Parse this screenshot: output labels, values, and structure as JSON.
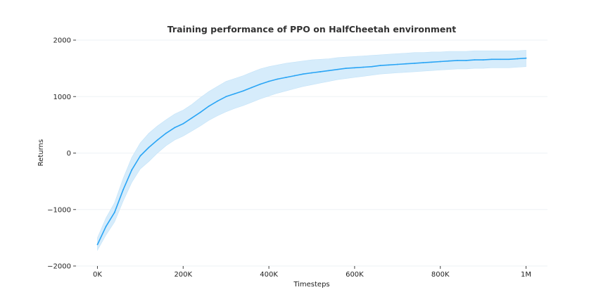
{
  "chart_data": {
    "type": "line",
    "title": "Training performance of PPO on HalfCheetah environment",
    "xlabel": "Timesteps",
    "ylabel": "Returns",
    "xlim": [
      -50000,
      1050000
    ],
    "ylim": [
      -2000,
      2000
    ],
    "xticks": [
      {
        "value": 0,
        "label": "0K"
      },
      {
        "value": 200000,
        "label": "200K"
      },
      {
        "value": 400000,
        "label": "400K"
      },
      {
        "value": 600000,
        "label": "600K"
      },
      {
        "value": 800000,
        "label": "800K"
      },
      {
        "value": 1000000,
        "label": "1M"
      }
    ],
    "yticks": [
      {
        "value": 2000,
        "label": "2000"
      },
      {
        "value": 1000,
        "label": "1000"
      },
      {
        "value": 0,
        "label": "0"
      },
      {
        "value": -1000,
        "label": "−1000"
      },
      {
        "value": -2000,
        "label": "−2000"
      }
    ],
    "grid": "horizontal",
    "series": [
      {
        "color": "#2aa5f5",
        "band_color": "#d6ecfb",
        "x": [
          0,
          20000,
          40000,
          60000,
          80000,
          100000,
          120000,
          140000,
          160000,
          180000,
          200000,
          220000,
          240000,
          260000,
          280000,
          300000,
          320000,
          340000,
          360000,
          380000,
          400000,
          420000,
          440000,
          460000,
          480000,
          500000,
          520000,
          540000,
          560000,
          580000,
          600000,
          620000,
          640000,
          660000,
          680000,
          700000,
          720000,
          740000,
          760000,
          780000,
          800000,
          820000,
          840000,
          860000,
          880000,
          900000,
          920000,
          940000,
          960000,
          980000,
          1000000
        ],
        "y": [
          -1620,
          -1300,
          -1050,
          -650,
          -300,
          -50,
          100,
          230,
          350,
          450,
          520,
          620,
          720,
          830,
          920,
          1000,
          1050,
          1100,
          1160,
          1220,
          1270,
          1310,
          1340,
          1370,
          1400,
          1420,
          1440,
          1460,
          1480,
          1500,
          1510,
          1520,
          1530,
          1550,
          1560,
          1570,
          1580,
          1590,
          1600,
          1610,
          1620,
          1630,
          1640,
          1640,
          1650,
          1650,
          1660,
          1660,
          1660,
          1670,
          1680
        ],
        "lower": [
          -1720,
          -1450,
          -1220,
          -850,
          -520,
          -280,
          -150,
          0,
          130,
          230,
          300,
          390,
          480,
          580,
          660,
          730,
          790,
          840,
          900,
          960,
          1010,
          1060,
          1100,
          1140,
          1180,
          1210,
          1240,
          1270,
          1300,
          1320,
          1340,
          1360,
          1380,
          1400,
          1410,
          1420,
          1430,
          1440,
          1450,
          1460,
          1470,
          1480,
          1490,
          1490,
          1500,
          1500,
          1510,
          1510,
          1510,
          1520,
          1530
        ],
        "upper": [
          -1500,
          -1150,
          -880,
          -450,
          -80,
          180,
          350,
          480,
          590,
          690,
          760,
          860,
          980,
          1090,
          1180,
          1270,
          1320,
          1370,
          1430,
          1490,
          1530,
          1560,
          1590,
          1610,
          1630,
          1650,
          1660,
          1670,
          1690,
          1700,
          1710,
          1720,
          1730,
          1740,
          1750,
          1760,
          1770,
          1780,
          1780,
          1790,
          1790,
          1800,
          1800,
          1800,
          1810,
          1810,
          1810,
          1810,
          1810,
          1810,
          1820
        ]
      }
    ]
  }
}
